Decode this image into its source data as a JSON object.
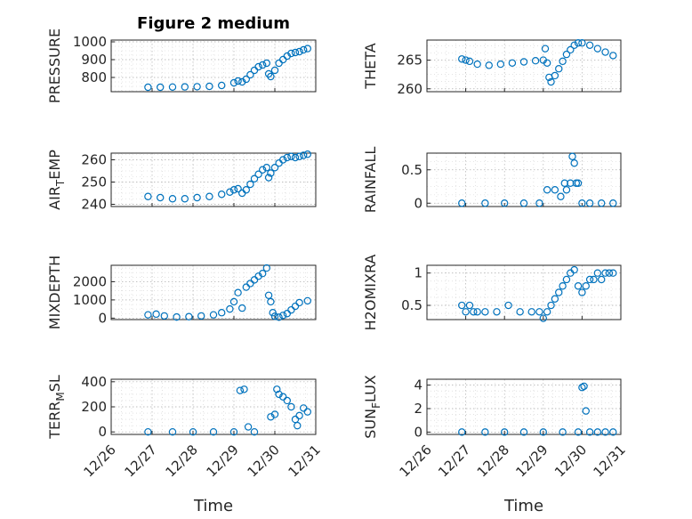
{
  "chart_data": [
    {
      "name": "pressure",
      "type": "scatter",
      "title": "Figure 2 medium",
      "ylabel": "PRESSURE",
      "xlabel": "",
      "ylim": [
        720,
        1010
      ],
      "yticks": [
        800,
        900,
        1000
      ],
      "xticks": [
        "12/26",
        "12/27",
        "12/28",
        "12/29",
        "12/30",
        "12/31"
      ],
      "xlim": [
        0,
        5
      ],
      "show_xticklabels": false,
      "series": [
        {
          "name": "PRESSURE",
          "x": [
            0.9,
            1.2,
            1.5,
            1.8,
            2.1,
            2.4,
            2.7,
            3.0,
            3.1,
            3.2,
            3.3,
            3.4,
            3.5,
            3.6,
            3.7,
            3.8,
            3.85,
            3.9,
            4.0,
            4.1,
            4.2,
            4.3,
            4.4,
            4.5,
            4.6,
            4.7,
            4.8
          ],
          "values": [
            745,
            745,
            746,
            747,
            748,
            750,
            755,
            770,
            780,
            775,
            790,
            815,
            840,
            860,
            870,
            880,
            820,
            805,
            840,
            880,
            900,
            920,
            935,
            940,
            945,
            955,
            962
          ]
        }
      ]
    },
    {
      "name": "theta",
      "type": "scatter",
      "title": "",
      "ylabel": "THETA",
      "xlabel": "",
      "ylim": [
        259.5,
        268.5
      ],
      "yticks": [
        260,
        265
      ],
      "xticks": [
        "12/26",
        "12/27",
        "12/28",
        "12/29",
        "12/30",
        "12/31"
      ],
      "xlim": [
        0,
        5
      ],
      "show_xticklabels": false,
      "series": [
        {
          "name": "THETA",
          "x": [
            0.9,
            1.0,
            1.1,
            1.3,
            1.6,
            1.9,
            2.2,
            2.5,
            2.8,
            3.0,
            3.05,
            3.1,
            3.15,
            3.2,
            3.3,
            3.4,
            3.5,
            3.6,
            3.7,
            3.8,
            3.9,
            4.0,
            4.2,
            4.4,
            4.6,
            4.8
          ],
          "values": [
            265.2,
            265.0,
            264.8,
            264.3,
            264.1,
            264.3,
            264.5,
            264.7,
            264.9,
            265.0,
            267.0,
            264.5,
            262.0,
            261.2,
            262.3,
            263.5,
            264.8,
            266.0,
            266.8,
            267.6,
            268.0,
            268.0,
            267.6,
            267.0,
            266.4,
            265.8
          ]
        }
      ]
    },
    {
      "name": "airtemp",
      "type": "scatter",
      "title": "",
      "ylabel": "AIR_TEMP",
      "xlabel": "",
      "ylim": [
        239,
        263
      ],
      "yticks": [
        240,
        250,
        260
      ],
      "xticks": [
        "12/26",
        "12/27",
        "12/28",
        "12/29",
        "12/30",
        "12/31"
      ],
      "xlim": [
        0,
        5
      ],
      "show_xticklabels": false,
      "series": [
        {
          "name": "AIR_TEMP",
          "x": [
            0.9,
            1.2,
            1.5,
            1.8,
            2.1,
            2.4,
            2.7,
            2.9,
            3.0,
            3.1,
            3.2,
            3.3,
            3.4,
            3.5,
            3.6,
            3.7,
            3.8,
            3.85,
            3.9,
            4.0,
            4.1,
            4.2,
            4.3,
            4.4,
            4.5,
            4.6,
            4.7,
            4.8
          ],
          "values": [
            243.5,
            243.0,
            242.5,
            242.5,
            243.0,
            243.5,
            244.5,
            245.5,
            246.5,
            247.0,
            245.0,
            246.5,
            249.0,
            251.5,
            253.5,
            255.5,
            256.5,
            252.0,
            254.0,
            256.5,
            258.5,
            260.0,
            261.0,
            261.5,
            261.0,
            261.5,
            262.0,
            262.5
          ]
        }
      ]
    },
    {
      "name": "rainfall",
      "type": "scatter",
      "title": "",
      "ylabel": "RAINFALL",
      "xlabel": "",
      "ylim": [
        -0.05,
        0.75
      ],
      "yticks": [
        0,
        0.5
      ],
      "xticks": [
        "12/26",
        "12/27",
        "12/28",
        "12/29",
        "12/30",
        "12/31"
      ],
      "xlim": [
        0,
        5
      ],
      "show_xticklabels": false,
      "series": [
        {
          "name": "RAINFALL",
          "x": [
            0.9,
            1.5,
            2.0,
            2.5,
            2.9,
            3.1,
            3.3,
            3.45,
            3.55,
            3.6,
            3.7,
            3.75,
            3.8,
            3.85,
            3.9,
            4.0,
            4.2,
            4.5,
            4.8
          ],
          "values": [
            0,
            0,
            0,
            0,
            0,
            0.2,
            0.2,
            0.1,
            0.3,
            0.2,
            0.3,
            0.7,
            0.6,
            0.3,
            0.3,
            0,
            0,
            0,
            0
          ]
        }
      ]
    },
    {
      "name": "mixdepth",
      "type": "scatter",
      "title": "",
      "ylabel": "MIXDEPTH",
      "xlabel": "",
      "ylim": [
        -80,
        2900
      ],
      "yticks": [
        0,
        1000,
        2000
      ],
      "xticks": [
        "12/26",
        "12/27",
        "12/28",
        "12/29",
        "12/30",
        "12/31"
      ],
      "xlim": [
        0,
        5
      ],
      "show_xticklabels": false,
      "series": [
        {
          "name": "MIXDEPTH",
          "x": [
            0.9,
            1.1,
            1.3,
            1.6,
            1.9,
            2.2,
            2.5,
            2.7,
            2.9,
            3.0,
            3.1,
            3.2,
            3.3,
            3.4,
            3.5,
            3.6,
            3.7,
            3.8,
            3.85,
            3.9,
            3.95,
            4.0,
            4.1,
            4.2,
            4.3,
            4.4,
            4.5,
            4.6,
            4.8
          ],
          "values": [
            180,
            220,
            120,
            60,
            80,
            120,
            180,
            300,
            500,
            900,
            1400,
            550,
            1700,
            1900,
            2100,
            2300,
            2450,
            2750,
            1250,
            900,
            300,
            100,
            50,
            150,
            250,
            450,
            650,
            850,
            950
          ]
        }
      ]
    },
    {
      "name": "h2omixra",
      "type": "scatter",
      "title": "",
      "ylabel": "H2OMIXRA",
      "xlabel": "",
      "ylim": [
        0.28,
        1.12
      ],
      "yticks": [
        0.5,
        1
      ],
      "xticks": [
        "12/26",
        "12/27",
        "12/28",
        "12/29",
        "12/30",
        "12/31"
      ],
      "xlim": [
        0,
        5
      ],
      "show_xticklabels": false,
      "series": [
        {
          "name": "H2OMIXRA",
          "x": [
            0.9,
            1.0,
            1.1,
            1.2,
            1.3,
            1.5,
            1.8,
            2.1,
            2.4,
            2.7,
            2.9,
            3.0,
            3.1,
            3.2,
            3.3,
            3.4,
            3.5,
            3.6,
            3.7,
            3.8,
            3.9,
            4.0,
            4.1,
            4.2,
            4.3,
            4.4,
            4.5,
            4.6,
            4.7,
            4.8
          ],
          "values": [
            0.5,
            0.4,
            0.5,
            0.4,
            0.4,
            0.4,
            0.4,
            0.5,
            0.4,
            0.4,
            0.4,
            0.3,
            0.4,
            0.5,
            0.6,
            0.7,
            0.8,
            0.9,
            1.0,
            1.05,
            0.8,
            0.7,
            0.8,
            0.9,
            0.9,
            1.0,
            0.9,
            1.0,
            1.0,
            1.0
          ]
        }
      ]
    },
    {
      "name": "terrmsl",
      "type": "scatter",
      "title": "",
      "ylabel": "TERR_MSL",
      "xlabel": "Time",
      "ylim": [
        -20,
        420
      ],
      "yticks": [
        0,
        200,
        400
      ],
      "xticks": [
        "12/26",
        "12/27",
        "12/28",
        "12/29",
        "12/30",
        "12/31"
      ],
      "xlim": [
        0,
        5
      ],
      "show_xticklabels": true,
      "series": [
        {
          "name": "TERR_MSL",
          "x": [
            0.9,
            1.5,
            2.0,
            2.5,
            3.0,
            3.15,
            3.25,
            3.35,
            3.5,
            3.9,
            4.0,
            4.05,
            4.1,
            4.2,
            4.3,
            4.4,
            4.5,
            4.55,
            4.6,
            4.7,
            4.8
          ],
          "values": [
            0,
            0,
            0,
            0,
            0,
            330,
            340,
            40,
            0,
            120,
            140,
            340,
            300,
            280,
            250,
            200,
            100,
            50,
            130,
            190,
            160
          ]
        }
      ]
    },
    {
      "name": "sunflux",
      "type": "scatter",
      "title": "",
      "ylabel": "SUN_FLUX",
      "xlabel": "Time",
      "ylim": [
        -0.2,
        4.5
      ],
      "yticks": [
        0,
        2,
        4
      ],
      "xticks": [
        "12/26",
        "12/27",
        "12/28",
        "12/29",
        "12/30",
        "12/31"
      ],
      "xlim": [
        0,
        5
      ],
      "show_xticklabels": true,
      "series": [
        {
          "name": "SUN_FLUX",
          "x": [
            0.9,
            1.5,
            2.0,
            2.5,
            3.0,
            3.5,
            3.9,
            4.0,
            4.05,
            4.1,
            4.2,
            4.4,
            4.6,
            4.8
          ],
          "values": [
            0,
            0,
            0,
            0,
            0,
            0,
            0,
            3.8,
            3.9,
            1.8,
            0,
            0,
            0,
            0
          ]
        }
      ]
    }
  ]
}
